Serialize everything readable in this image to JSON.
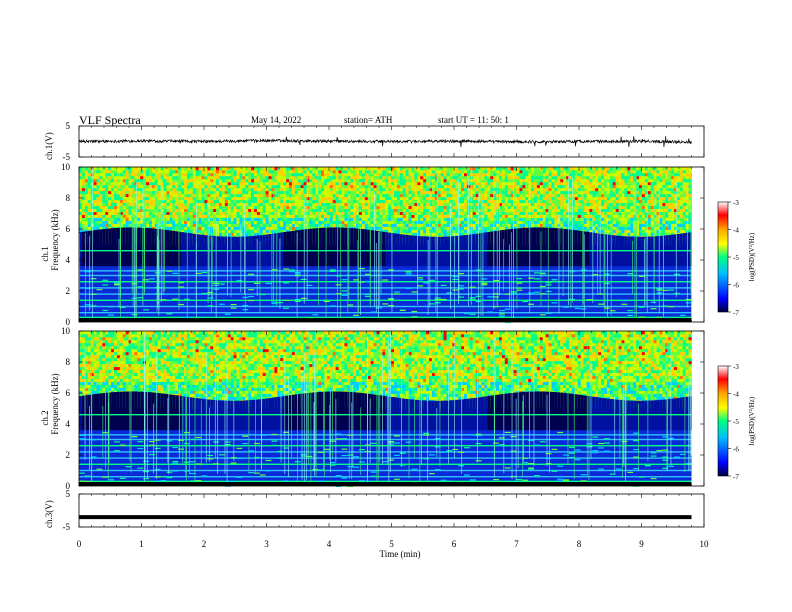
{
  "header": {
    "title": "VLF  Spectra",
    "date": "May 14, 2022",
    "station": "station= ATH",
    "start": "start  UT  =    11: 50: 1"
  },
  "panels": {
    "ch1_wave": {
      "ylabel": "ch.1(V)",
      "yticks": [
        "5",
        "-5"
      ]
    },
    "ch1_spec": {
      "ylabel_1": "ch.1",
      "ylabel_2": "Frequency (kHz)",
      "yticks": [
        "0",
        "2",
        "4",
        "6",
        "8",
        "10"
      ]
    },
    "ch2_spec": {
      "ylabel_1": "ch.2",
      "ylabel_2": "Frequency (kHz)",
      "yticks": [
        "0",
        "2",
        "4",
        "6",
        "8",
        "10"
      ]
    },
    "ch3_wave": {
      "ylabel": "ch.3(V)",
      "yticks": [
        "5",
        "-5"
      ]
    }
  },
  "xaxis": {
    "label": "Time  (min)",
    "ticks": [
      "0",
      "1",
      "2",
      "3",
      "4",
      "5",
      "6",
      "7",
      "8",
      "9",
      "10"
    ]
  },
  "colorbar": {
    "label": "log(PSD)(V²/Hz)",
    "ticks": [
      "-3",
      "-4",
      "-5",
      "-6",
      "-7"
    ],
    "colors": [
      "#ffffff",
      "#ff0000",
      "#ffa500",
      "#ffff00",
      "#00ff80",
      "#00c0ff",
      "#0000ff",
      "#000040"
    ]
  },
  "chart_data": [
    {
      "type": "line",
      "name": "ch.1 waveform",
      "ylabel": "ch.1(V)",
      "xlabel": "Time  (min)",
      "xlim": [
        0,
        10
      ],
      "ylim": [
        -5,
        5
      ],
      "x": [
        0,
        1,
        2,
        3,
        4,
        5,
        6,
        7,
        8,
        9,
        9.8
      ],
      "values": [
        0,
        0.2,
        0.0,
        0.3,
        0.1,
        0.0,
        0.1,
        -0.1,
        0.0,
        0.1,
        -0.2
      ]
    },
    {
      "type": "heatmap",
      "name": "ch.1 spectrogram",
      "ylabel": "Frequency (kHz)",
      "xlim": [
        0,
        9.8
      ],
      "ylim": [
        0,
        10
      ],
      "zlim": [
        -7,
        -3
      ]
    },
    {
      "type": "heatmap",
      "name": "ch.2 spectrogram",
      "ylabel": "Frequency (kHz)",
      "xlim": [
        0,
        9.8
      ],
      "ylim": [
        0,
        10
      ],
      "zlim": [
        -7,
        -3
      ]
    },
    {
      "type": "line",
      "name": "ch.3 waveform",
      "ylabel": "ch.3(V)",
      "xlim": [
        0,
        10
      ],
      "ylim": [
        -5,
        5
      ],
      "x": [
        0,
        9.8
      ],
      "values": [
        -2,
        -2
      ]
    }
  ]
}
